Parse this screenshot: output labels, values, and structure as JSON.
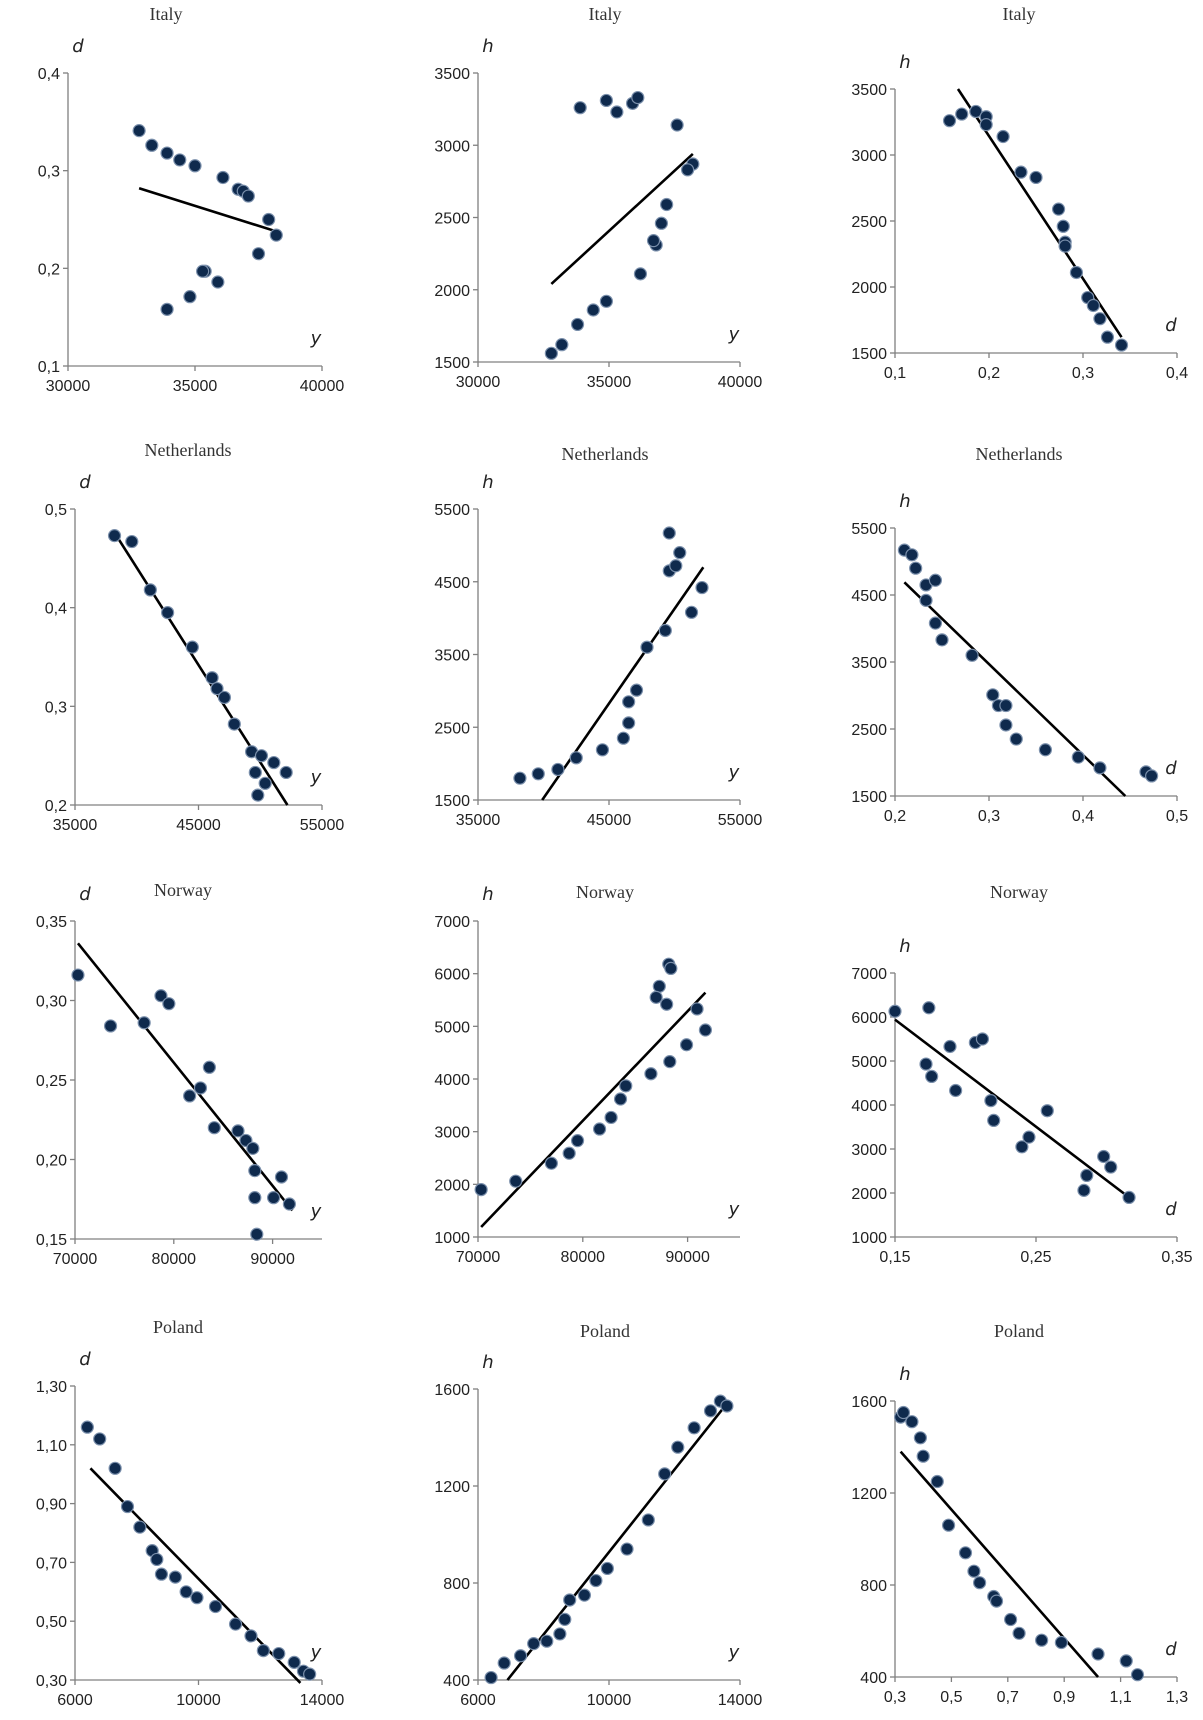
{
  "chart_data": [
    {
      "type": "scatter",
      "title": "Italy",
      "xlabel": "y",
      "ylabel": "d",
      "xlim": [
        30000,
        40000
      ],
      "ylim": [
        0.1,
        0.4
      ],
      "xticks": [
        30000,
        35000,
        40000
      ],
      "xtick_labels": [
        "30000",
        "35000",
        "40000"
      ],
      "yticks": [
        0.1,
        0.2,
        0.3,
        0.4
      ],
      "ytick_labels": [
        "0,1",
        "0,2",
        "0,3",
        "0,4"
      ],
      "trend": [
        [
          32800,
          0.282
        ],
        [
          38300,
          0.237
        ]
      ],
      "x": [
        32800,
        33300,
        33900,
        34400,
        35000,
        35400,
        36100,
        36700,
        36900,
        37100,
        37900,
        38200,
        37500,
        35900,
        35300,
        34800,
        33900
      ],
      "y": [
        0.341,
        0.326,
        0.318,
        0.311,
        0.305,
        0.197,
        0.293,
        0.281,
        0.279,
        0.274,
        0.25,
        0.234,
        0.215,
        0.186,
        0.197,
        0.171,
        0.158
      ]
    },
    {
      "type": "scatter",
      "title": "Italy",
      "xlabel": "y",
      "ylabel": "h",
      "xlim": [
        30000,
        40000
      ],
      "ylim": [
        1500,
        3500
      ],
      "xticks": [
        30000,
        35000,
        40000
      ],
      "xtick_labels": [
        "30000",
        "35000",
        "40000"
      ],
      "yticks": [
        1500,
        2000,
        2500,
        3000,
        3500
      ],
      "ytick_labels": [
        "1500",
        "2000",
        "2500",
        "3000",
        "3500"
      ],
      "trend": [
        [
          32800,
          2040
        ],
        [
          38200,
          2940
        ]
      ],
      "x": [
        32800,
        33200,
        33800,
        34400,
        34900,
        33900,
        34900,
        35300,
        35900,
        36100,
        37600,
        38200,
        38000,
        37200,
        37000,
        36800,
        36700,
        36200
      ],
      "y": [
        1560,
        1620,
        1760,
        1860,
        1920,
        3260,
        3310,
        3230,
        3290,
        3330,
        3140,
        2870,
        2830,
        2590,
        2460,
        2310,
        2340,
        2110
      ]
    },
    {
      "type": "scatter",
      "title": "Italy",
      "xlabel": "d",
      "ylabel": "h",
      "xlim": [
        0.1,
        0.4
      ],
      "ylim": [
        1500,
        3500
      ],
      "xticks": [
        0.1,
        0.2,
        0.3,
        0.4
      ],
      "xtick_labels": [
        "0,1",
        "0,2",
        "0,3",
        "0,4"
      ],
      "yticks": [
        1500,
        2000,
        2500,
        3000,
        3500
      ],
      "ytick_labels": [
        "1500",
        "2000",
        "2500",
        "3000",
        "3500"
      ],
      "trend": [
        [
          0.167,
          3500
        ],
        [
          0.341,
          1620
        ]
      ],
      "x": [
        0.158,
        0.171,
        0.186,
        0.197,
        0.197,
        0.215,
        0.234,
        0.25,
        0.274,
        0.279,
        0.281,
        0.281,
        0.293,
        0.305,
        0.311,
        0.318,
        0.326,
        0.341
      ],
      "y": [
        3260,
        3310,
        3330,
        3290,
        3230,
        3140,
        2870,
        2830,
        2590,
        2460,
        2340,
        2310,
        2110,
        1920,
        1860,
        1760,
        1620,
        1560
      ]
    },
    {
      "type": "scatter",
      "title": "Netherlands",
      "xlabel": "y",
      "ylabel": "d",
      "xlim": [
        35000,
        55000
      ],
      "ylim": [
        0.2,
        0.5
      ],
      "xticks": [
        35000,
        45000,
        55000
      ],
      "xtick_labels": [
        "35000",
        "45000",
        "55000"
      ],
      "yticks": [
        0.2,
        0.3,
        0.4,
        0.5
      ],
      "ytick_labels": [
        "0,2",
        "0,3",
        "0,4",
        "0,5"
      ],
      "trend": [
        [
          38200,
          0.476
        ],
        [
          52200,
          0.2
        ]
      ],
      "x": [
        38200,
        39600,
        41100,
        42500,
        44500,
        46100,
        46500,
        47100,
        47900,
        49300,
        50100,
        49600,
        49800,
        51100,
        52100,
        50400
      ],
      "y": [
        0.473,
        0.467,
        0.418,
        0.395,
        0.36,
        0.329,
        0.318,
        0.309,
        0.282,
        0.254,
        0.25,
        0.233,
        0.21,
        0.243,
        0.233,
        0.222
      ]
    },
    {
      "type": "scatter",
      "title": "Netherlands",
      "xlabel": "y",
      "ylabel": "h",
      "xlim": [
        35000,
        55000
      ],
      "ylim": [
        1500,
        5500
      ],
      "xticks": [
        35000,
        45000,
        55000
      ],
      "xtick_labels": [
        "35000",
        "45000",
        "55000"
      ],
      "yticks": [
        1500,
        2500,
        3500,
        4500,
        5500
      ],
      "ytick_labels": [
        "1500",
        "2500",
        "3500",
        "4500",
        "5500"
      ],
      "trend": [
        [
          39900,
          1500
        ],
        [
          52200,
          4700
        ]
      ],
      "x": [
        38200,
        39600,
        41100,
        42500,
        44500,
        46100,
        46500,
        47100,
        47900,
        46500,
        49300,
        49600,
        50100,
        49600,
        50400,
        51300,
        52100
      ],
      "y": [
        1800,
        1860,
        1920,
        2080,
        2190,
        2350,
        2560,
        3010,
        3600,
        2850,
        3830,
        4650,
        4720,
        5170,
        4900,
        4080,
        4420
      ]
    },
    {
      "type": "scatter",
      "title": "Netherlands",
      "xlabel": "d",
      "ylabel": "h",
      "xlim": [
        0.2,
        0.5
      ],
      "ylim": [
        1500,
        5500
      ],
      "xticks": [
        0.2,
        0.3,
        0.4,
        0.5
      ],
      "xtick_labels": [
        "0,2",
        "0,3",
        "0,4",
        "0,5"
      ],
      "yticks": [
        1500,
        2500,
        3500,
        4500,
        5500
      ],
      "ytick_labels": [
        "1500",
        "2500",
        "3500",
        "4500",
        "5500"
      ],
      "trend": [
        [
          0.21,
          4690
        ],
        [
          0.445,
          1500
        ]
      ],
      "x": [
        0.21,
        0.218,
        0.222,
        0.233,
        0.233,
        0.243,
        0.243,
        0.25,
        0.282,
        0.304,
        0.31,
        0.318,
        0.318,
        0.329,
        0.36,
        0.395,
        0.418,
        0.467,
        0.473
      ],
      "y": [
        5170,
        5100,
        4900,
        4650,
        4420,
        4720,
        4080,
        3830,
        3600,
        3010,
        2850,
        2850,
        2560,
        2350,
        2190,
        2080,
        1920,
        1860,
        1800
      ]
    },
    {
      "type": "scatter",
      "title": "Norway",
      "xlabel": "y",
      "ylabel": "d",
      "xlim": [
        70000,
        95000
      ],
      "ylim": [
        0.15,
        0.35
      ],
      "xticks": [
        70000,
        80000,
        90000
      ],
      "xtick_labels": [
        "70000",
        "80000",
        "90000"
      ],
      "yticks": [
        0.15,
        0.2,
        0.25,
        0.3,
        0.35
      ],
      "ytick_labels": [
        "0,15",
        "0,20",
        "0,25",
        "0,30",
        "0,35"
      ],
      "trend": [
        [
          70300,
          0.336
        ],
        [
          92000,
          0.168
        ]
      ],
      "x": [
        70300,
        73600,
        77000,
        78700,
        79500,
        81600,
        82700,
        83600,
        84100,
        86500,
        87300,
        88000,
        88200,
        90100,
        90900,
        91700,
        88200,
        88400
      ],
      "y": [
        0.316,
        0.284,
        0.286,
        0.303,
        0.298,
        0.24,
        0.245,
        0.258,
        0.22,
        0.218,
        0.212,
        0.207,
        0.193,
        0.176,
        0.189,
        0.172,
        0.176,
        0.153
      ]
    },
    {
      "type": "scatter",
      "title": "Norway",
      "xlabel": "y",
      "ylabel": "h",
      "xlim": [
        70000,
        95000
      ],
      "ylim": [
        1000,
        7000
      ],
      "xticks": [
        70000,
        80000,
        90000
      ],
      "xtick_labels": [
        "70000",
        "80000",
        "90000"
      ],
      "yticks": [
        1000,
        2000,
        3000,
        4000,
        5000,
        6000,
        7000
      ],
      "ytick_labels": [
        "1000",
        "2000",
        "3000",
        "4000",
        "5000",
        "6000",
        "7000"
      ],
      "trend": [
        [
          70300,
          1190
        ],
        [
          91700,
          5640
        ]
      ],
      "x": [
        70300,
        73600,
        77000,
        78700,
        79500,
        81600,
        82700,
        83600,
        84100,
        86500,
        87300,
        88000,
        88200,
        88400,
        87000,
        88300,
        89900,
        90900,
        91700
      ],
      "y": [
        1900,
        2060,
        2400,
        2590,
        2830,
        3050,
        3270,
        3620,
        3870,
        4100,
        5760,
        5420,
        6180,
        6100,
        5550,
        4330,
        4650,
        5330,
        4930
      ]
    },
    {
      "type": "scatter",
      "title": "Norway",
      "xlabel": "d",
      "ylabel": "h",
      "xlim": [
        0.15,
        0.35
      ],
      "ylim": [
        1000,
        7000
      ],
      "xticks": [
        0.15,
        0.25,
        0.35
      ],
      "xtick_labels": [
        "0,15",
        "0,25",
        "0,35"
      ],
      "yticks": [
        1000,
        2000,
        3000,
        4000,
        5000,
        6000,
        7000
      ],
      "ytick_labels": [
        "1000",
        "2000",
        "3000",
        "4000",
        "5000",
        "6000",
        "7000"
      ],
      "trend": [
        [
          0.15,
          5940
        ],
        [
          0.316,
          1900
        ]
      ],
      "x": [
        0.15,
        0.174,
        0.172,
        0.176,
        0.189,
        0.193,
        0.207,
        0.212,
        0.218,
        0.22,
        0.24,
        0.245,
        0.258,
        0.284,
        0.286,
        0.298,
        0.303,
        0.316
      ],
      "y": [
        6130,
        6210,
        4930,
        4650,
        5330,
        4330,
        5420,
        5500,
        4100,
        3650,
        3050,
        3270,
        3870,
        2060,
        2400,
        2830,
        2590,
        1900
      ]
    },
    {
      "type": "scatter",
      "title": "Poland",
      "xlabel": "y",
      "ylabel": "d",
      "xlim": [
        6000,
        14000
      ],
      "ylim": [
        0.3,
        1.3
      ],
      "xticks": [
        6000,
        10000,
        14000
      ],
      "xtick_labels": [
        "6000",
        "10000",
        "14000"
      ],
      "yticks": [
        0.3,
        0.5,
        0.7,
        0.9,
        1.1,
        1.3
      ],
      "ytick_labels": [
        "0,30",
        "0,50",
        "0,70",
        "0,90",
        "1,10",
        "1,30"
      ],
      "trend": [
        [
          6500,
          1.02
        ],
        [
          13300,
          0.29
        ]
      ],
      "x": [
        6400,
        6800,
        7300,
        7700,
        8100,
        8500,
        8650,
        8800,
        9250,
        9600,
        9950,
        10550,
        11200,
        11700,
        12100,
        12600,
        13100,
        13400,
        13600
      ],
      "y": [
        1.16,
        1.12,
        1.02,
        0.89,
        0.82,
        0.74,
        0.71,
        0.66,
        0.65,
        0.6,
        0.58,
        0.55,
        0.49,
        0.45,
        0.4,
        0.39,
        0.36,
        0.33,
        0.32
      ]
    },
    {
      "type": "scatter",
      "title": "Poland",
      "xlabel": "y",
      "ylabel": "h",
      "xlim": [
        6000,
        14000
      ],
      "ylim": [
        400,
        1600
      ],
      "xticks": [
        6000,
        10000,
        14000
      ],
      "xtick_labels": [
        "6000",
        "10000",
        "14000"
      ],
      "yticks": [
        400,
        800,
        1200,
        1600
      ],
      "ytick_labels": [
        "400",
        "800",
        "1200",
        "1600"
      ],
      "trend": [
        [
          6900,
          400
        ],
        [
          13600,
          1540
        ]
      ],
      "x": [
        6400,
        6800,
        7300,
        7700,
        8100,
        8500,
        8650,
        8800,
        9250,
        9600,
        9950,
        10550,
        11200,
        11700,
        12100,
        12600,
        13100,
        13400,
        13600
      ],
      "y": [
        410,
        470,
        500,
        550,
        560,
        590,
        650,
        730,
        750,
        810,
        860,
        940,
        1060,
        1250,
        1360,
        1440,
        1510,
        1550,
        1530
      ]
    },
    {
      "type": "scatter",
      "title": "Poland",
      "xlabel": "d",
      "ylabel": "h",
      "xlim": [
        0.3,
        1.3
      ],
      "ylim": [
        400,
        1600
      ],
      "xticks": [
        0.3,
        0.5,
        0.7,
        0.9,
        1.1,
        1.3
      ],
      "xtick_labels": [
        "0,3",
        "0,5",
        "0,7",
        "0,9",
        "1,1",
        "1,3"
      ],
      "yticks": [
        400,
        800,
        1200,
        1600
      ],
      "ytick_labels": [
        "400",
        "800",
        "1200",
        "1600"
      ],
      "trend": [
        [
          0.32,
          1380
        ],
        [
          1.02,
          400
        ]
      ],
      "x": [
        0.32,
        0.33,
        0.36,
        0.39,
        0.4,
        0.45,
        0.49,
        0.55,
        0.58,
        0.6,
        0.65,
        0.66,
        0.71,
        0.74,
        0.82,
        0.89,
        1.02,
        1.12,
        1.16
      ],
      "y": [
        1530,
        1550,
        1510,
        1440,
        1360,
        1250,
        1060,
        940,
        860,
        810,
        750,
        730,
        650,
        590,
        560,
        550,
        500,
        470,
        410
      ]
    }
  ]
}
